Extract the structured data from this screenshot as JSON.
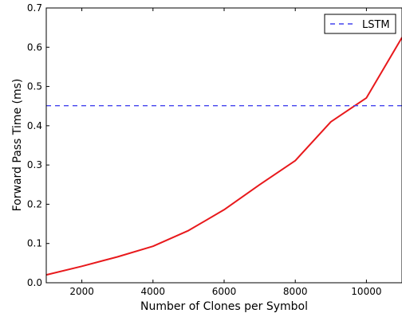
{
  "chart_data": {
    "type": "line",
    "title": "",
    "xlabel": "Number of Clones per Symbol",
    "ylabel": "Forward Pass Time (ms)",
    "xlim": [
      1000,
      11000
    ],
    "ylim": [
      0.0,
      0.7
    ],
    "x_ticks": [
      2000,
      4000,
      6000,
      8000,
      10000
    ],
    "y_ticks": [
      0.0,
      0.1,
      0.2,
      0.3,
      0.4,
      0.5,
      0.6,
      0.7
    ],
    "x_tick_labels": [
      "2000",
      "4000",
      "6000",
      "8000",
      "10000"
    ],
    "y_tick_labels": [
      "0.0",
      "0.1",
      "0.2",
      "0.3",
      "0.4",
      "0.5",
      "0.6",
      "0.7"
    ],
    "grid": false,
    "legend_position": "top-right",
    "series": [
      {
        "color": "#e8191c",
        "style": "solid",
        "x": [
          1000,
          2000,
          3000,
          4000,
          5000,
          6000,
          7000,
          8000,
          9000,
          10000,
          11000
        ],
        "y": [
          0.02,
          0.042,
          0.066,
          0.093,
          0.133,
          0.186,
          0.25,
          0.311,
          0.41,
          0.471,
          0.625
        ]
      },
      {
        "name": "LSTM",
        "color": "#4444ee",
        "style": "dashed",
        "x": [
          1000,
          11000
        ],
        "y": [
          0.451,
          0.451
        ]
      }
    ]
  }
}
